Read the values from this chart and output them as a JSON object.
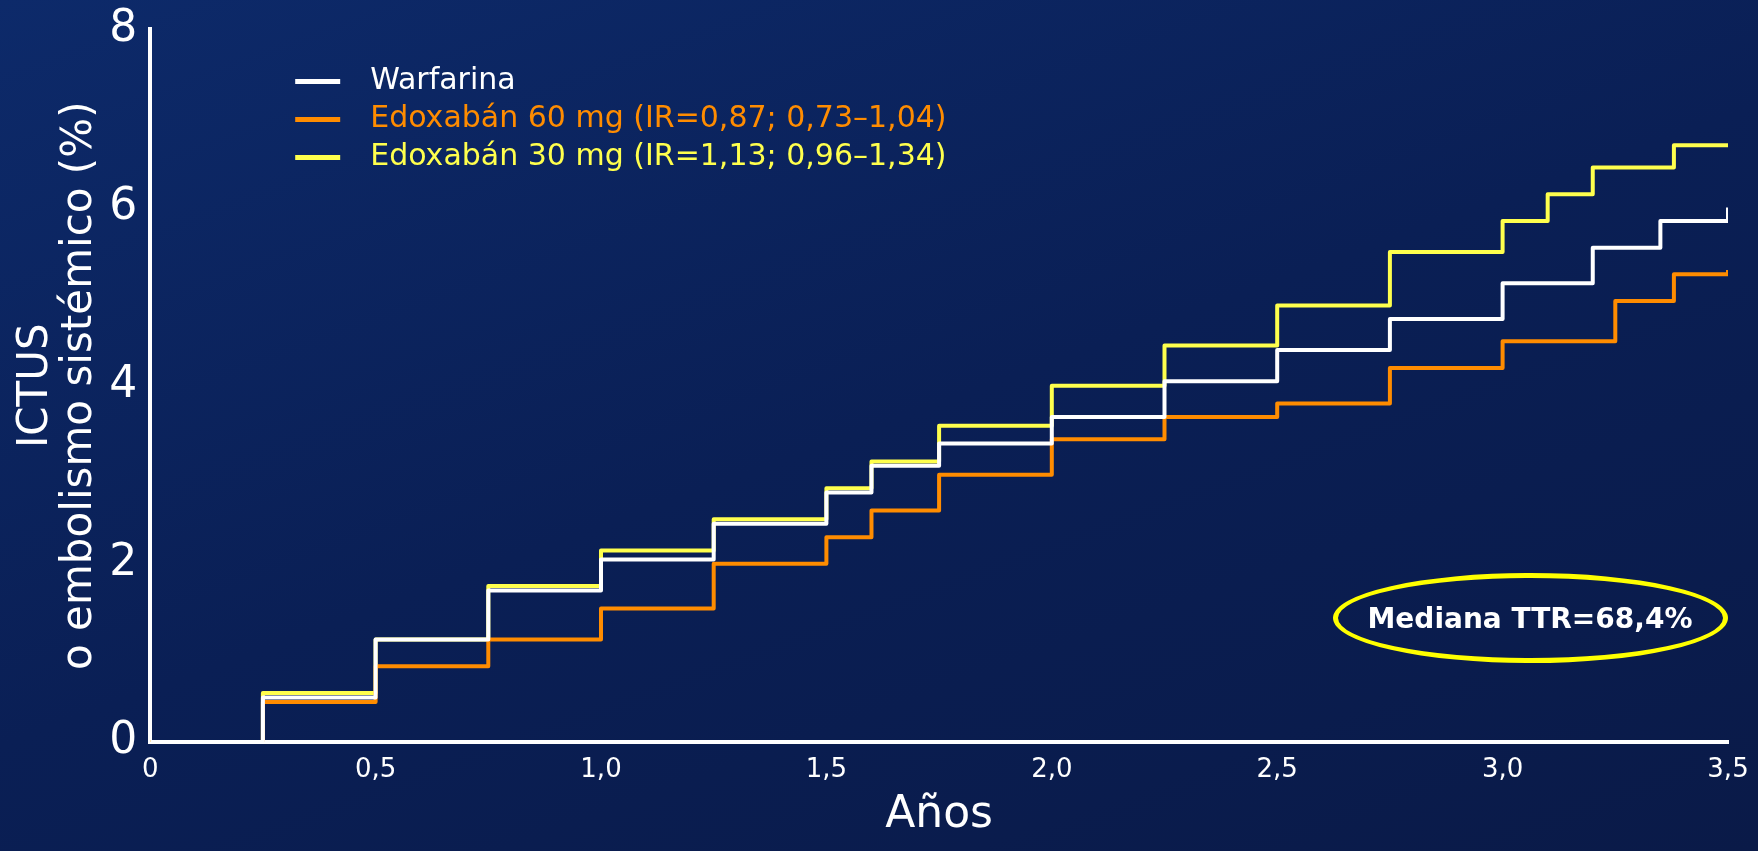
{
  "chart_data": {
    "type": "step",
    "xlabel": "Años",
    "ylabel": "ICTUS\no embolismo sistémico (%)",
    "xlim": [
      0,
      3.5
    ],
    "ylim": [
      0,
      8
    ],
    "xticks": [
      0,
      {
        "value": 0.5,
        "label": "0,5"
      },
      {
        "value": 1,
        "label": "1,0"
      },
      {
        "value": 1.5,
        "label": "1,5"
      },
      {
        "value": 2,
        "label": "2,0"
      },
      {
        "value": 2.5,
        "label": "2,5"
      },
      {
        "value": 3,
        "label": "3,0"
      },
      {
        "value": 3.5,
        "label": "3,5"
      }
    ],
    "yticks": [
      0,
      2,
      4,
      6,
      8
    ],
    "grid": false,
    "legend": "top left",
    "marker": "none",
    "line_style": "solid",
    "annotations": [
      "Mediana TTR=68,4%"
    ],
    "series": [
      {
        "name": "Warfarina",
        "color": "#ffffff",
        "x": [
          0,
          0.25,
          0.5,
          0.75,
          1.0,
          1.25,
          1.5,
          1.6,
          1.75,
          2.0,
          2.25,
          2.5,
          2.75,
          3.0,
          3.2,
          3.35,
          3.5
        ],
        "values": [
          0,
          0.5,
          1.15,
          1.7,
          2.05,
          2.45,
          2.8,
          3.1,
          3.35,
          3.65,
          4.05,
          4.4,
          4.75,
          5.15,
          5.55,
          5.85,
          6.0
        ]
      },
      {
        "name": "Edoxabán 60 mg (IR=0,87; 0,73–1,04)",
        "color": "#ff8c00",
        "x": [
          0,
          0.25,
          0.5,
          0.75,
          1.0,
          1.25,
          1.5,
          1.6,
          1.75,
          2.0,
          2.25,
          2.5,
          2.75,
          3.0,
          3.25,
          3.38,
          3.5
        ],
        "values": [
          0,
          0.45,
          0.85,
          1.15,
          1.5,
          2.0,
          2.3,
          2.6,
          3.0,
          3.4,
          3.65,
          3.8,
          4.2,
          4.5,
          4.95,
          5.25,
          5.3
        ]
      },
      {
        "name": "Edoxabán 30 mg (IR=1,13; 0,96–1,34)",
        "color": "#ffff4d",
        "x": [
          0,
          0.25,
          0.5,
          0.75,
          1.0,
          1.25,
          1.5,
          1.6,
          1.75,
          2.0,
          2.25,
          2.5,
          2.75,
          3.0,
          3.1,
          3.2,
          3.38,
          3.5
        ],
        "values": [
          0,
          0.55,
          1.15,
          1.75,
          2.15,
          2.5,
          2.85,
          3.15,
          3.55,
          4.0,
          4.45,
          4.9,
          5.5,
          5.85,
          6.15,
          6.45,
          6.7,
          6.7
        ]
      }
    ]
  }
}
